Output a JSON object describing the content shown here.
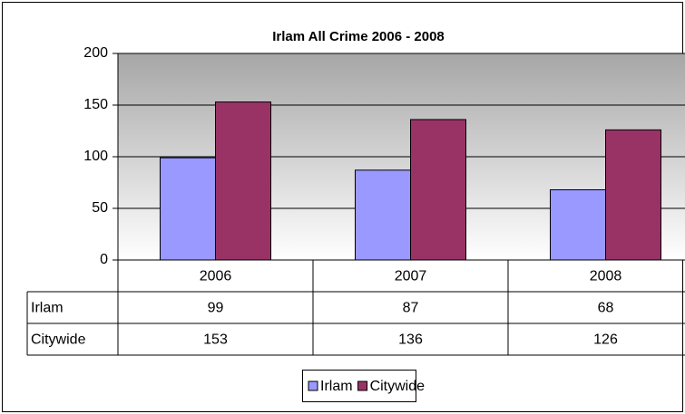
{
  "chart_data": {
    "type": "bar",
    "title": "Irlam All Crime 2006 - 2008",
    "categories": [
      "2006",
      "2007",
      "2008"
    ],
    "series": [
      {
        "name": "Irlam",
        "color": "#9999ff",
        "values": [
          99,
          87,
          68
        ]
      },
      {
        "name": "Citywide",
        "color": "#993366",
        "values": [
          153,
          136,
          126
        ]
      }
    ],
    "ylim": [
      0,
      200
    ],
    "yticks": [
      0,
      50,
      100,
      150,
      200
    ],
    "grid": true,
    "legend": "bottom"
  }
}
